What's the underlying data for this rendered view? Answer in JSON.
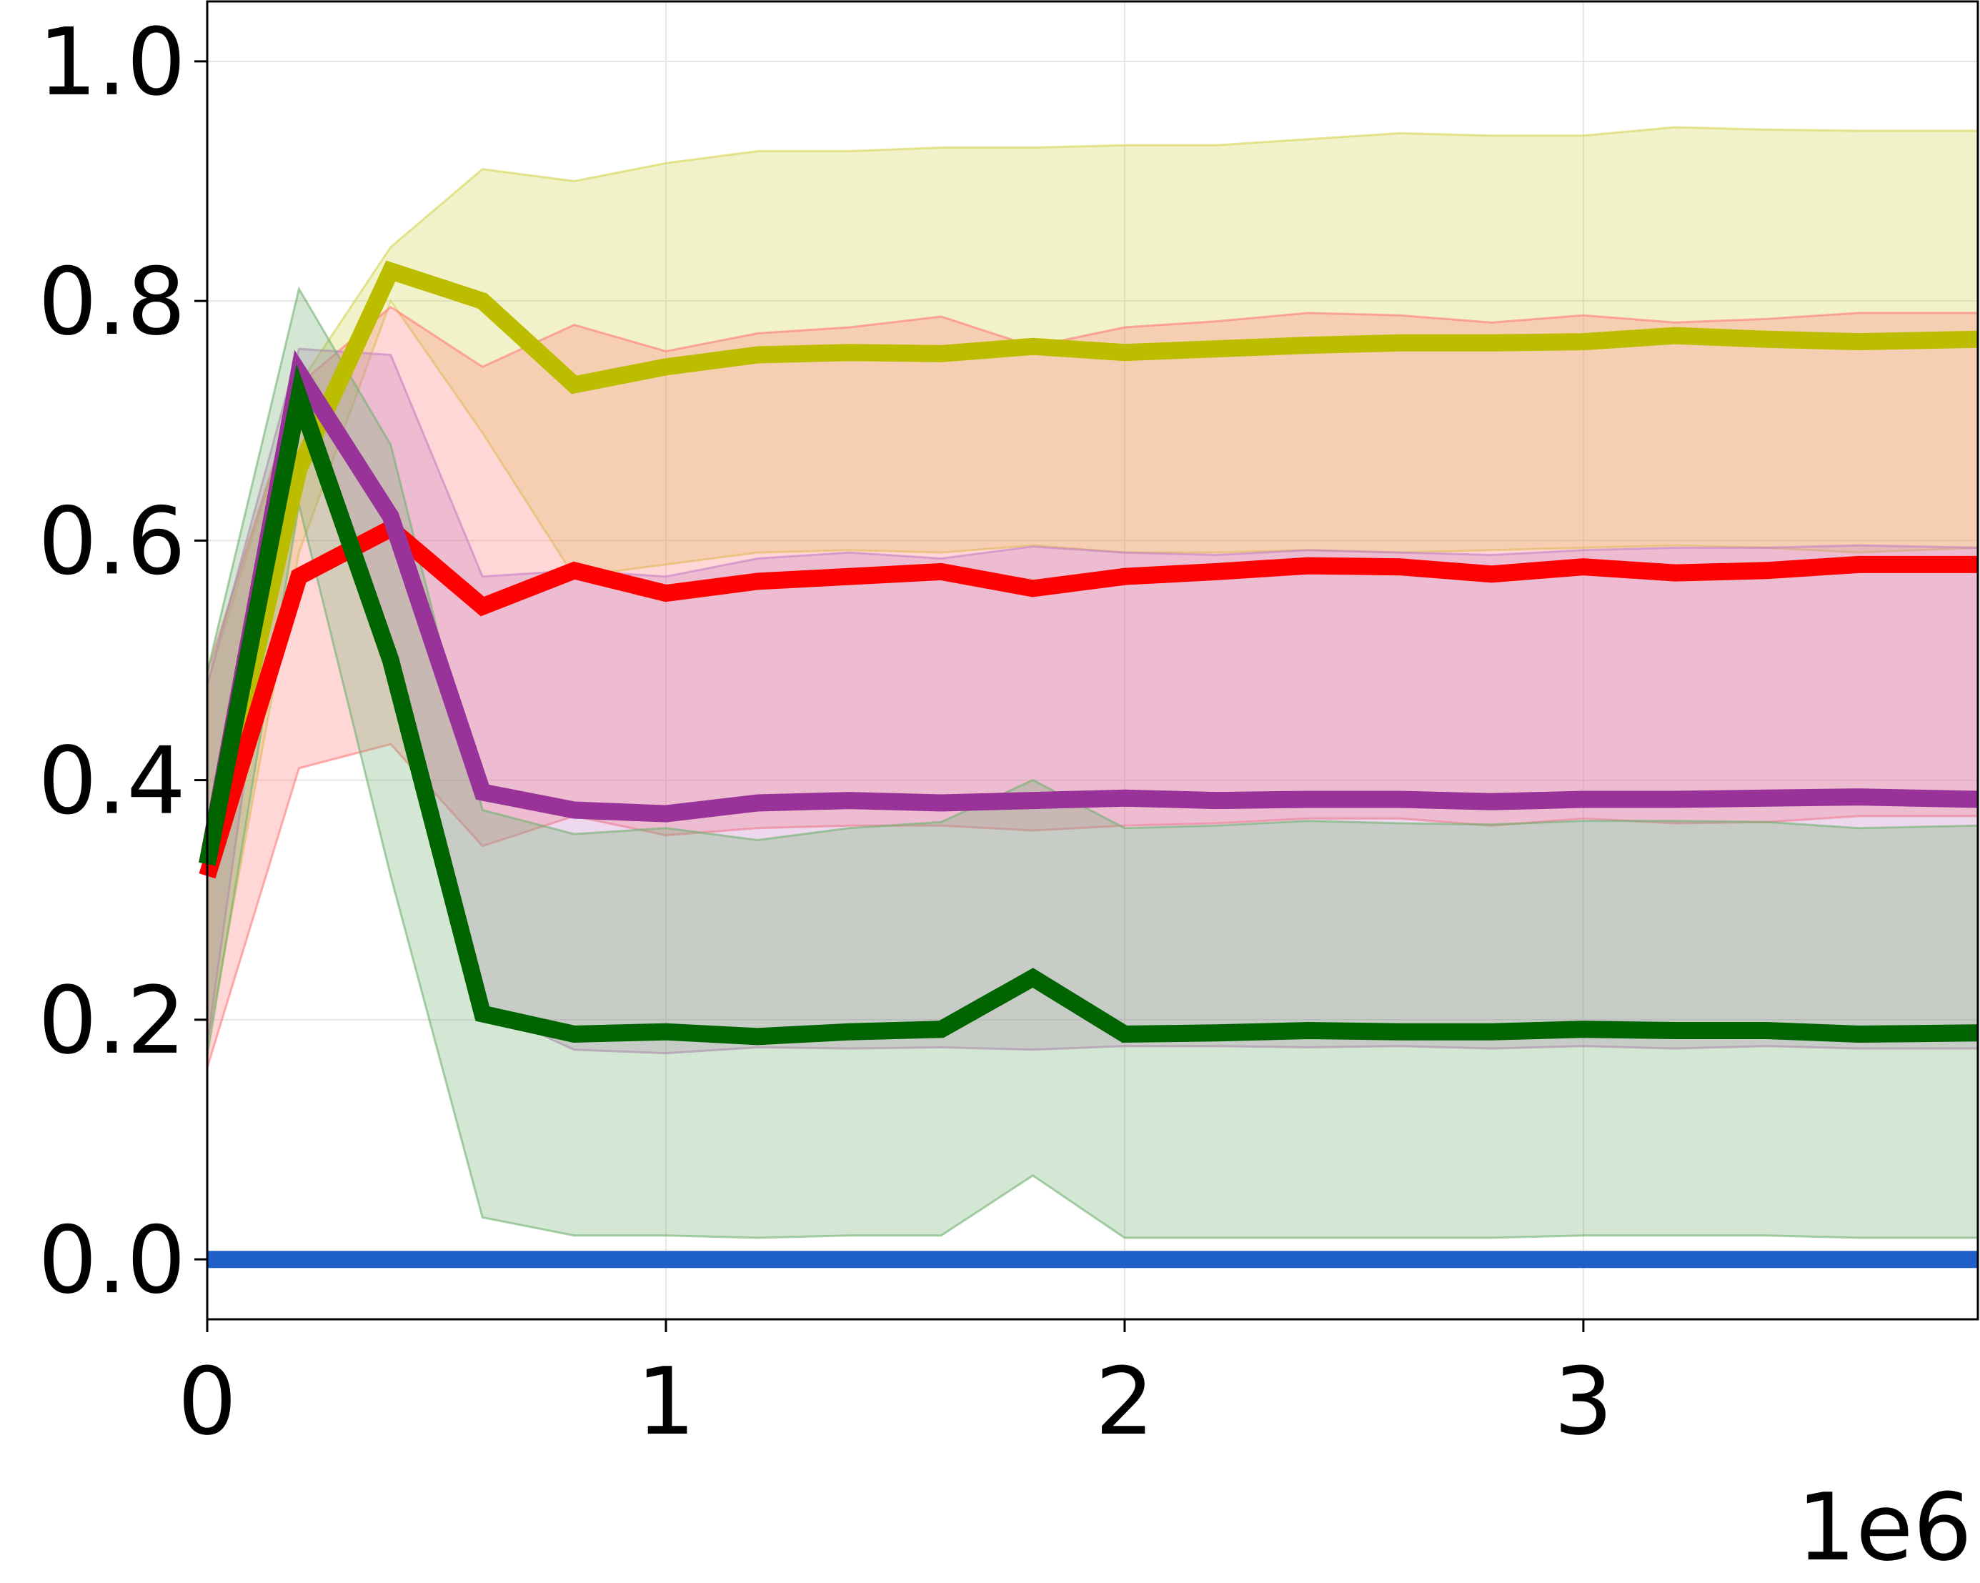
{
  "chart_data": {
    "type": "line",
    "title": "",
    "xlabel": "",
    "ylabel": "",
    "x_offset_label": "1e6",
    "xlim": [
      0,
      3.86
    ],
    "ylim": [
      -0.05,
      1.05
    ],
    "grid": true,
    "legend": "none",
    "x_ticks": [
      {
        "value": 0,
        "label": "0"
      },
      {
        "value": 1,
        "label": "1"
      },
      {
        "value": 2,
        "label": "2"
      },
      {
        "value": 3,
        "label": "3"
      }
    ],
    "y_ticks": [
      {
        "value": 0.0,
        "label": "0.0"
      },
      {
        "value": 0.2,
        "label": "0.2"
      },
      {
        "value": 0.4,
        "label": "0.4"
      },
      {
        "value": 0.6,
        "label": "0.6"
      },
      {
        "value": 0.8,
        "label": "0.8"
      },
      {
        "value": 1.0,
        "label": "1.0"
      }
    ],
    "x": [
      0.0,
      0.2,
      0.4,
      0.6,
      0.8,
      1.0,
      1.2,
      1.4,
      1.6,
      1.8,
      2.0,
      2.2,
      2.4,
      2.6,
      2.8,
      3.0,
      3.2,
      3.4,
      3.6,
      3.86
    ],
    "series": [
      {
        "color": "#bdbd00",
        "band_color": "#d4d44e",
        "values": [
          0.33,
          0.66,
          0.825,
          0.8,
          0.73,
          0.745,
          0.755,
          0.757,
          0.756,
          0.762,
          0.757,
          0.76,
          0.763,
          0.765,
          0.765,
          0.766,
          0.771,
          0.768,
          0.766,
          0.768
        ],
        "upper": [
          0.48,
          0.73,
          0.845,
          0.91,
          0.9,
          0.915,
          0.925,
          0.925,
          0.928,
          0.928,
          0.93,
          0.93,
          0.935,
          0.94,
          0.938,
          0.938,
          0.945,
          0.943,
          0.942,
          0.942
        ],
        "lower": [
          0.18,
          0.59,
          0.8,
          0.69,
          0.57,
          0.58,
          0.59,
          0.592,
          0.59,
          0.596,
          0.59,
          0.59,
          0.592,
          0.59,
          0.592,
          0.594,
          0.596,
          0.594,
          0.59,
          0.594
        ]
      },
      {
        "color": "#ff0000",
        "band_color": "#ff7a7a",
        "values": [
          0.32,
          0.57,
          0.61,
          0.545,
          0.575,
          0.556,
          0.566,
          0.57,
          0.574,
          0.56,
          0.57,
          0.574,
          0.579,
          0.578,
          0.572,
          0.578,
          0.573,
          0.575,
          0.58,
          0.58
        ],
        "upper": [
          0.49,
          0.73,
          0.795,
          0.745,
          0.78,
          0.758,
          0.773,
          0.778,
          0.787,
          0.762,
          0.778,
          0.783,
          0.79,
          0.788,
          0.782,
          0.788,
          0.782,
          0.785,
          0.79,
          0.79
        ],
        "lower": [
          0.16,
          0.41,
          0.43,
          0.345,
          0.37,
          0.354,
          0.36,
          0.362,
          0.362,
          0.358,
          0.362,
          0.364,
          0.368,
          0.368,
          0.362,
          0.368,
          0.364,
          0.365,
          0.37,
          0.37
        ]
      },
      {
        "color": "#993399",
        "band_color": "#c57fc5",
        "values": [
          0.33,
          0.74,
          0.62,
          0.39,
          0.375,
          0.372,
          0.381,
          0.383,
          0.381,
          0.383,
          0.385,
          0.383,
          0.384,
          0.384,
          0.382,
          0.384,
          0.384,
          0.385,
          0.386,
          0.384
        ],
        "upper": [
          0.48,
          0.76,
          0.755,
          0.57,
          0.575,
          0.57,
          0.585,
          0.59,
          0.585,
          0.595,
          0.59,
          0.588,
          0.592,
          0.59,
          0.588,
          0.592,
          0.594,
          0.594,
          0.596,
          0.594
        ],
        "lower": [
          0.18,
          0.72,
          0.485,
          0.21,
          0.175,
          0.172,
          0.177,
          0.176,
          0.177,
          0.175,
          0.178,
          0.178,
          0.177,
          0.178,
          0.176,
          0.178,
          0.176,
          0.178,
          0.176,
          0.176
        ]
      },
      {
        "color": "#006400",
        "band_color": "#6fb06f",
        "values": [
          0.33,
          0.72,
          0.5,
          0.205,
          0.188,
          0.19,
          0.186,
          0.19,
          0.192,
          0.235,
          0.188,
          0.189,
          0.191,
          0.19,
          0.19,
          0.192,
          0.191,
          0.191,
          0.188,
          0.189
        ],
        "upper": [
          0.49,
          0.81,
          0.68,
          0.375,
          0.355,
          0.36,
          0.35,
          0.36,
          0.365,
          0.4,
          0.36,
          0.362,
          0.366,
          0.364,
          0.363,
          0.366,
          0.366,
          0.365,
          0.36,
          0.362
        ],
        "lower": [
          0.17,
          0.63,
          0.32,
          0.035,
          0.02,
          0.02,
          0.018,
          0.02,
          0.02,
          0.07,
          0.018,
          0.018,
          0.018,
          0.018,
          0.018,
          0.02,
          0.02,
          0.02,
          0.018,
          0.018
        ]
      },
      {
        "color": "#1f5fc8",
        "band_color": "#1f5fc8",
        "values": [
          0,
          0,
          0,
          0,
          0,
          0,
          0,
          0,
          0,
          0,
          0,
          0,
          0,
          0,
          0,
          0,
          0,
          0,
          0,
          0
        ]
      }
    ]
  }
}
